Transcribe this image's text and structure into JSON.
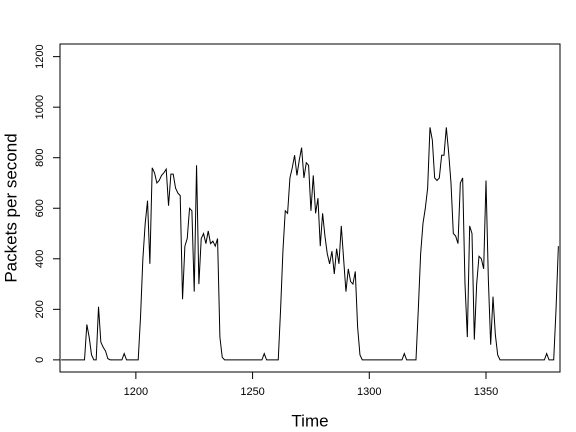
{
  "chart_data": {
    "type": "line",
    "xlabel": "Time",
    "ylabel": "Packets per second",
    "color": "#000000",
    "xlim": [
      1167.5,
      1381.7
    ],
    "ylim": [
      -48,
      1250
    ],
    "xticks": [
      1200,
      1250,
      1300,
      1350
    ],
    "yticks": [
      0,
      200,
      400,
      600,
      800,
      1000,
      1200
    ],
    "x": [
      1168,
      1169,
      1170,
      1171,
      1172,
      1173,
      1174,
      1175,
      1176,
      1177,
      1178,
      1179,
      1180,
      1181,
      1182,
      1183,
      1184,
      1185,
      1186,
      1187,
      1188,
      1189,
      1190,
      1191,
      1192,
      1193,
      1194,
      1195,
      1196,
      1197,
      1198,
      1199,
      1200,
      1201,
      1202,
      1203,
      1204,
      1205,
      1206,
      1207,
      1208,
      1209,
      1210,
      1211,
      1212,
      1213,
      1214,
      1215,
      1216,
      1217,
      1218,
      1219,
      1220,
      1221,
      1222,
      1223,
      1224,
      1225,
      1226,
      1227,
      1228,
      1229,
      1230,
      1231,
      1232,
      1233,
      1234,
      1235,
      1236,
      1237,
      1238,
      1239,
      1240,
      1241,
      1242,
      1243,
      1244,
      1245,
      1246,
      1247,
      1248,
      1249,
      1250,
      1251,
      1252,
      1253,
      1254,
      1255,
      1256,
      1257,
      1258,
      1259,
      1260,
      1261,
      1262,
      1263,
      1264,
      1265,
      1266,
      1267,
      1268,
      1269,
      1270,
      1271,
      1272,
      1273,
      1274,
      1275,
      1276,
      1277,
      1278,
      1279,
      1280,
      1281,
      1282,
      1283,
      1284,
      1285,
      1286,
      1287,
      1288,
      1289,
      1290,
      1291,
      1292,
      1293,
      1294,
      1295,
      1296,
      1297,
      1298,
      1299,
      1300,
      1301,
      1302,
      1303,
      1304,
      1305,
      1306,
      1307,
      1308,
      1309,
      1310,
      1311,
      1312,
      1313,
      1314,
      1315,
      1316,
      1317,
      1318,
      1319,
      1320,
      1321,
      1322,
      1323,
      1324,
      1325,
      1326,
      1327,
      1328,
      1329,
      1330,
      1331,
      1332,
      1333,
      1334,
      1335,
      1336,
      1337,
      1338,
      1339,
      1340,
      1341,
      1342,
      1343,
      1344,
      1345,
      1346,
      1347,
      1348,
      1349,
      1350,
      1351,
      1352,
      1353,
      1354,
      1355,
      1356,
      1357,
      1358,
      1359,
      1360,
      1361,
      1362,
      1363,
      1364,
      1365,
      1366,
      1367,
      1368,
      1369,
      1370,
      1371,
      1372,
      1373,
      1374,
      1375,
      1376,
      1377,
      1378,
      1379,
      1380,
      1381
    ],
    "values": [
      0,
      0,
      0,
      0,
      0,
      0,
      0,
      0,
      0,
      0,
      0,
      140,
      90,
      20,
      0,
      0,
      210,
      70,
      50,
      35,
      5,
      0,
      0,
      0,
      0,
      0,
      0,
      25,
      0,
      0,
      0,
      0,
      0,
      0,
      170,
      400,
      540,
      630,
      380,
      760,
      740,
      700,
      710,
      730,
      740,
      755,
      610,
      735,
      735,
      680,
      660,
      650,
      240,
      450,
      480,
      600,
      590,
      270,
      770,
      300,
      480,
      500,
      460,
      510,
      460,
      470,
      450,
      480,
      90,
      10,
      0,
      0,
      0,
      0,
      0,
      0,
      0,
      0,
      0,
      0,
      0,
      0,
      0,
      0,
      0,
      0,
      0,
      25,
      0,
      0,
      0,
      0,
      0,
      0,
      200,
      430,
      590,
      580,
      720,
      760,
      810,
      730,
      790,
      840,
      720,
      780,
      770,
      590,
      730,
      580,
      640,
      450,
      580,
      490,
      420,
      380,
      430,
      340,
      440,
      380,
      530,
      400,
      270,
      360,
      310,
      300,
      350,
      130,
      20,
      0,
      0,
      0,
      0,
      0,
      0,
      0,
      0,
      0,
      0,
      0,
      0,
      0,
      0,
      0,
      0,
      0,
      0,
      25,
      0,
      0,
      0,
      0,
      0,
      200,
      420,
      540,
      600,
      680,
      920,
      870,
      720,
      710,
      720,
      810,
      810,
      920,
      820,
      700,
      500,
      490,
      460,
      700,
      720,
      300,
      90,
      530,
      500,
      80,
      300,
      410,
      400,
      360,
      710,
      320,
      60,
      250,
      100,
      20,
      0,
      0,
      0,
      0,
      0,
      0,
      0,
      0,
      0,
      0,
      0,
      0,
      0,
      0,
      0,
      0,
      0,
      0,
      0,
      0,
      25,
      0,
      0,
      0,
      200,
      450
    ]
  }
}
